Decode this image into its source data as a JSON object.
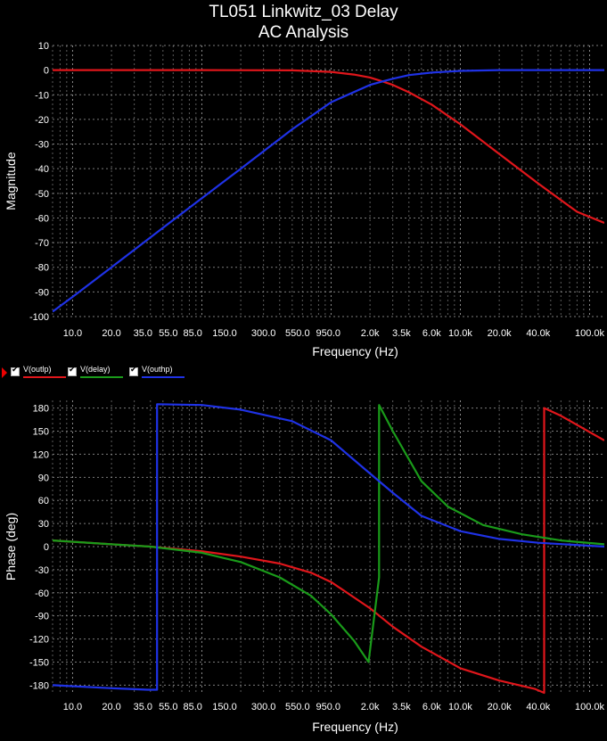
{
  "title_line1": "TL051 Linkwitz_03 Delay",
  "title_line2": "AC Analysis",
  "legend": [
    {
      "label": "V(outlp)",
      "color": "#e0161b"
    },
    {
      "label": "V(delay)",
      "color": "#1a9b1a"
    },
    {
      "label": "V(outhp)",
      "color": "#1f32e6"
    }
  ],
  "chart_data": [
    {
      "type": "line",
      "title": "TL051 Linkwitz_03 Delay AC Analysis",
      "xlabel": "Frequency (Hz)",
      "ylabel": "Magnitude",
      "xscale": "log",
      "xlim": [
        7,
        130000
      ],
      "ylim": [
        -100,
        10
      ],
      "grid": true,
      "x_tick_labels": [
        "10.0",
        "20.0",
        "35.0",
        "55.0",
        "85.0",
        "150.0",
        "300.0",
        "550.0",
        "950.0",
        "2.0k",
        "3.5k",
        "6.0k",
        "10.0k",
        "20.0k",
        "40.0k",
        "100.0k"
      ],
      "y_tick_labels": [
        "10",
        "0",
        "-10",
        "-20",
        "-30",
        "-40",
        "-50",
        "-60",
        "-70",
        "-80",
        "-90",
        "-100"
      ],
      "series": [
        {
          "name": "V(outlp)",
          "color": "#e0161b",
          "x": [
            7,
            100,
            500,
            1000,
            1500,
            2000,
            2500,
            3000,
            4000,
            6000,
            10000,
            20000,
            40000,
            80000,
            130000
          ],
          "y": [
            0,
            0,
            -0.1,
            -0.7,
            -1.8,
            -3,
            -4.6,
            -6,
            -9,
            -14,
            -22,
            -34,
            -46,
            -57.5,
            -62
          ]
        },
        {
          "name": "V(outhp)",
          "color": "#1f32e6",
          "x": [
            7,
            10,
            20,
            50,
            100,
            200,
            500,
            1000,
            2000,
            2500,
            3000,
            4000,
            6000,
            10000,
            20000,
            130000
          ],
          "y": [
            -98,
            -92,
            -80,
            -64,
            -52,
            -40,
            -24,
            -13,
            -6,
            -4.6,
            -3.5,
            -2,
            -1,
            -0.3,
            0,
            0
          ]
        }
      ]
    },
    {
      "type": "line",
      "xlabel": "Frequency (Hz)",
      "ylabel": "Phase (deg)",
      "xscale": "log",
      "xlim": [
        7,
        130000
      ],
      "ylim": [
        -190,
        190
      ],
      "grid": true,
      "x_tick_labels": [
        "10.0",
        "20.0",
        "35.0",
        "55.0",
        "85.0",
        "150.0",
        "300.0",
        "550.0",
        "950.0",
        "2.0k",
        "3.5k",
        "6.0k",
        "10.0k",
        "20.0k",
        "40.0k",
        "100.0k"
      ],
      "y_tick_labels": [
        "180",
        "150",
        "120",
        "90",
        "60",
        "30",
        "0",
        "-30",
        "-60",
        "-90",
        "-120",
        "-150",
        "-180"
      ],
      "series": [
        {
          "name": "V(outlp)",
          "color": "#e0161b",
          "x": [
            7,
            20,
            40,
            100,
            200,
            400,
            700,
            1000,
            2000,
            3000,
            5000,
            10000,
            20000,
            38000,
            44500,
            44500,
            60000,
            130000
          ],
          "y": [
            8,
            3,
            0,
            -6,
            -13,
            -22,
            -34,
            -46,
            -80,
            -104,
            -130,
            -158,
            -174,
            -185,
            -190,
            180,
            170,
            138
          ]
        },
        {
          "name": "V(delay)",
          "color": "#1a9b1a",
          "x": [
            7,
            20,
            40,
            100,
            200,
            400,
            700,
            1000,
            1500,
            1950,
            2350,
            2350,
            3000,
            5000,
            8000,
            15000,
            30000,
            60000,
            130000
          ],
          "y": [
            8,
            3,
            0,
            -8,
            -20,
            -40,
            -64,
            -88,
            -122,
            -150,
            -40,
            184,
            150,
            85,
            52,
            28,
            16,
            8,
            3
          ]
        },
        {
          "name": "V(outhp)",
          "color": "#1f32e6",
          "x": [
            7,
            20,
            38,
            45,
            45,
            100,
            200,
            500,
            1000,
            2000,
            3000,
            5000,
            10000,
            20000,
            40000,
            130000
          ],
          "y": [
            -180,
            -184,
            -186,
            -186,
            185,
            184,
            178,
            163,
            138,
            95,
            70,
            40,
            20,
            10,
            5,
            0
          ]
        }
      ]
    }
  ]
}
